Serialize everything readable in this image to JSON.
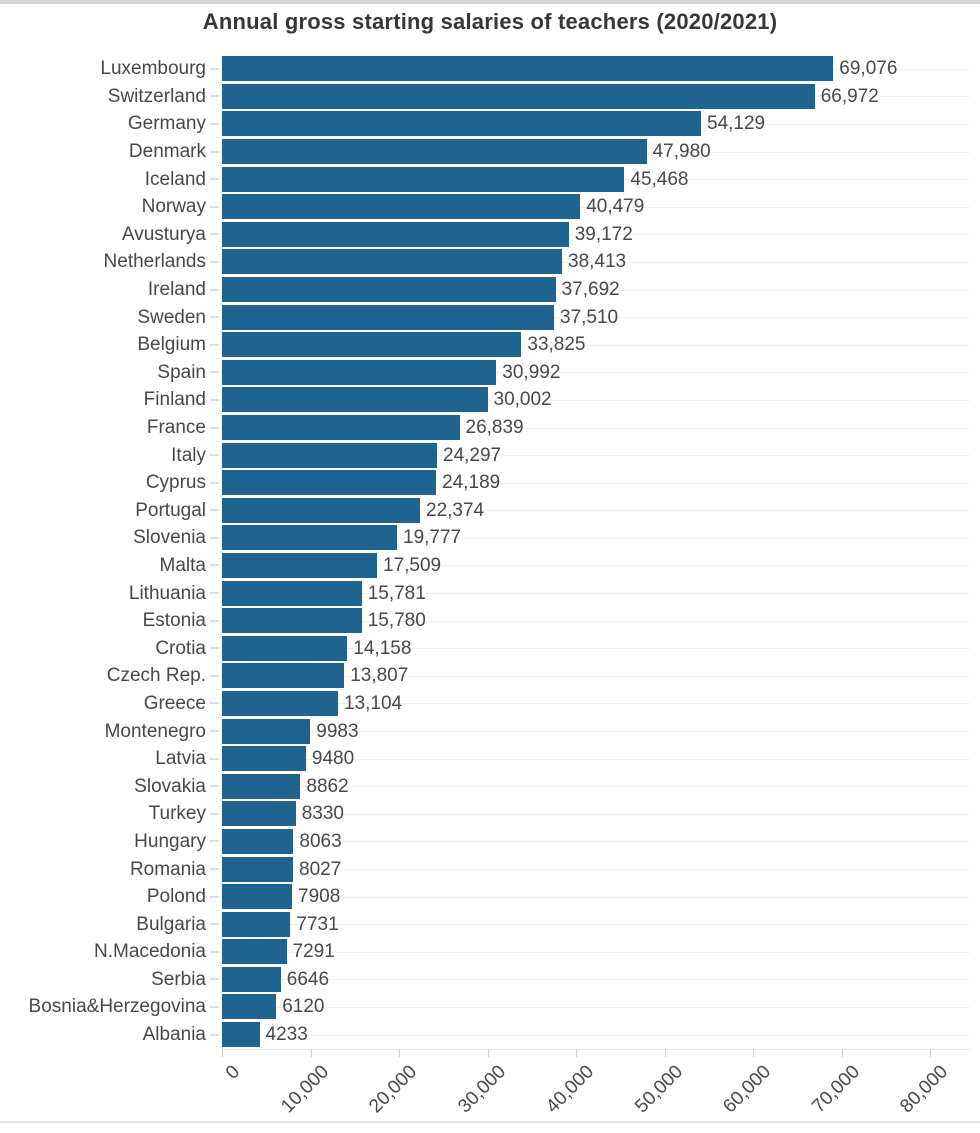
{
  "chart_data": {
    "type": "bar",
    "orientation": "horizontal",
    "title": "Annual gross starting salaries of teachers (2020/2021)",
    "categories": [
      "Luxembourg",
      "Switzerland",
      "Germany",
      "Denmark",
      "Iceland",
      "Norway",
      "Avusturya",
      "Netherlands",
      "Ireland",
      "Sweden",
      "Belgium",
      "Spain",
      "Finland",
      "France",
      "Italy",
      "Cyprus",
      "Portugal",
      "Slovenia",
      "Malta",
      "Lithuania",
      "Estonia",
      "Crotia",
      "Czech Rep.",
      "Greece",
      "Montenegro",
      "Latvia",
      "Slovakia",
      "Turkey",
      "Hungary",
      "Romania",
      "Polond",
      "Bulgaria",
      "N.Macedonia",
      "Serbia",
      "Bosnia&Herzegovina",
      "Albania"
    ],
    "values": [
      69076,
      66972,
      54129,
      47980,
      45468,
      40479,
      39172,
      38413,
      37692,
      37510,
      33825,
      30992,
      30002,
      26839,
      24297,
      24189,
      22374,
      19777,
      17509,
      15781,
      15780,
      14158,
      13807,
      13104,
      9983,
      9480,
      8862,
      8330,
      8063,
      8027,
      7908,
      7731,
      7291,
      6646,
      6120,
      4233
    ],
    "value_labels": [
      "69,076",
      "66,972",
      "54,129",
      "47,980",
      "45,468",
      "40,479",
      "39,172",
      "38,413",
      "37,692",
      "37,510",
      "33,825",
      "30,992",
      "30,002",
      "26,839",
      "24,297",
      "24,189",
      "22,374",
      "19,777",
      "17,509",
      "15,781",
      "15,780",
      "14,158",
      "13,807",
      "13,104",
      "9983",
      "9480",
      "8862",
      "8330",
      "8063",
      "8027",
      "7908",
      "7731",
      "7291",
      "6646",
      "6120",
      "4233"
    ],
    "xlim": [
      0,
      80000
    ],
    "x_ticks": {
      "values": [
        0,
        10000,
        20000,
        30000,
        40000,
        50000,
        60000,
        70000,
        80000
      ],
      "labels": [
        "0",
        "10,000",
        "20,000",
        "30,000",
        "40,000",
        "50,000",
        "60,000",
        "70,000",
        "80,000"
      ]
    },
    "grid": "horizontal-row-gridlines",
    "legend": "none",
    "colors": {
      "bar": "#20638f",
      "title_text": "#373737",
      "label_text": "#484848",
      "gridline": "#f1f1f1",
      "axis_tick": "#cfcfcf"
    }
  }
}
